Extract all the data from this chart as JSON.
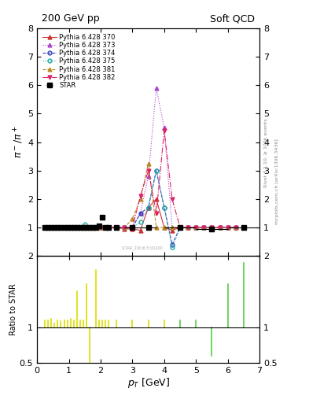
{
  "title_left": "200 GeV pp",
  "title_right": "Soft QCD",
  "ylabel_main": "$\\pi^- / \\pi^+$",
  "ylabel_ratio": "Ratio to STAR",
  "xlabel": "$p_T$ [GeV]",
  "right_label1": "Rivet 3.1.10, ≥ 100k events",
  "right_label2": "mcplots.cern.ch [arXiv:1306.3436]",
  "ylim_main": [
    0,
    8
  ],
  "ylim_ratio": [
    0.5,
    2
  ],
  "xlim": [
    0,
    7
  ],
  "star_x": [
    0.25,
    0.35,
    0.45,
    0.55,
    0.65,
    0.75,
    0.85,
    0.95,
    1.05,
    1.15,
    1.25,
    1.35,
    1.45,
    1.55,
    1.65,
    1.75,
    1.85,
    1.95,
    2.05,
    2.15,
    2.25,
    2.5,
    3.0,
    3.5,
    4.5,
    5.5,
    6.5
  ],
  "star_y": [
    1.0,
    1.0,
    1.0,
    1.0,
    1.0,
    1.0,
    1.0,
    1.0,
    1.0,
    1.0,
    1.0,
    1.0,
    1.0,
    1.0,
    1.0,
    1.0,
    1.0,
    1.05,
    1.35,
    1.0,
    1.0,
    1.0,
    1.0,
    1.0,
    1.0,
    0.95,
    1.0
  ],
  "star_xerr": [
    0.05,
    0.05,
    0.05,
    0.05,
    0.05,
    0.05,
    0.05,
    0.05,
    0.05,
    0.05,
    0.05,
    0.05,
    0.05,
    0.05,
    0.05,
    0.05,
    0.05,
    0.05,
    0.05,
    0.05,
    0.05,
    0.12,
    0.25,
    0.25,
    0.5,
    0.5,
    0.5
  ],
  "pythia_x": [
    0.25,
    0.5,
    0.75,
    1.0,
    1.25,
    1.5,
    1.75,
    2.0,
    2.25,
    2.5,
    2.75,
    3.0,
    3.25,
    3.5,
    3.75,
    4.0,
    4.25,
    4.5,
    4.75,
    5.0,
    5.25,
    5.5,
    5.75,
    6.0,
    6.25
  ],
  "py370_y": [
    1.0,
    1.0,
    1.0,
    1.0,
    1.0,
    1.0,
    1.0,
    1.0,
    1.0,
    1.0,
    0.95,
    0.95,
    0.9,
    1.7,
    2.0,
    1.0,
    0.9,
    1.0,
    1.0,
    1.0,
    1.0,
    1.0,
    1.0,
    1.0,
    1.0
  ],
  "py373_y": [
    1.0,
    1.0,
    1.0,
    1.0,
    1.0,
    1.0,
    1.0,
    1.0,
    1.0,
    1.0,
    1.0,
    1.0,
    1.5,
    2.8,
    5.9,
    4.5,
    1.0,
    1.0,
    1.0,
    1.0,
    1.0,
    1.0,
    1.0,
    1.0,
    1.0
  ],
  "py374_y": [
    1.0,
    1.0,
    1.0,
    1.0,
    1.0,
    1.0,
    1.0,
    1.0,
    1.0,
    1.0,
    1.0,
    1.0,
    1.5,
    1.7,
    3.0,
    1.7,
    0.4,
    1.0,
    1.0,
    1.0,
    1.0,
    1.0,
    1.0,
    1.0,
    1.0
  ],
  "py375_y": [
    1.0,
    1.0,
    1.0,
    1.0,
    1.0,
    1.1,
    1.0,
    1.0,
    1.0,
    1.0,
    1.0,
    1.0,
    1.2,
    1.7,
    3.0,
    1.7,
    0.3,
    1.0,
    1.0,
    1.0,
    1.0,
    1.0,
    1.0,
    1.0,
    1.0
  ],
  "py381_y": [
    1.0,
    1.0,
    1.0,
    1.0,
    1.0,
    1.0,
    1.0,
    1.0,
    1.0,
    1.0,
    1.0,
    1.3,
    2.0,
    3.25,
    1.0,
    1.0,
    1.0,
    1.0,
    1.0,
    1.0,
    1.0,
    1.0,
    1.0,
    1.0,
    1.0
  ],
  "py382_y": [
    1.0,
    1.0,
    1.0,
    1.0,
    1.0,
    1.0,
    1.0,
    1.0,
    1.0,
    1.0,
    1.0,
    1.0,
    2.1,
    3.0,
    1.5,
    4.4,
    2.0,
    1.0,
    1.0,
    1.0,
    1.0,
    1.0,
    1.0,
    1.0,
    1.0
  ],
  "color_370": "#cc3333",
  "color_373": "#aa44cc",
  "color_374": "#3344bb",
  "color_375": "#22aaaa",
  "color_381": "#bb8822",
  "color_382": "#dd2266",
  "ratio_x_yellow": [
    0.25,
    0.35,
    0.45,
    0.55,
    0.65,
    0.75,
    0.85,
    0.95,
    1.05,
    1.15,
    1.25,
    1.35,
    1.45,
    1.55,
    1.65,
    1.75,
    1.85,
    1.95,
    2.05,
    2.15,
    2.25,
    2.5,
    3.0,
    3.5,
    4.0
  ],
  "ratio_y_yellow": [
    1.1,
    1.1,
    1.12,
    1.05,
    1.1,
    1.08,
    1.1,
    1.1,
    1.12,
    1.1,
    1.5,
    1.1,
    1.1,
    1.6,
    0.4,
    1.0,
    1.8,
    1.1,
    1.1,
    1.1,
    1.1,
    1.1,
    1.1,
    1.1,
    1.1
  ],
  "ratio_x_green": [
    4.5,
    5.0,
    5.5,
    6.0,
    6.5
  ],
  "ratio_y_green": [
    1.1,
    1.1,
    0.6,
    1.6,
    1.9
  ],
  "background_color": "#ffffff"
}
